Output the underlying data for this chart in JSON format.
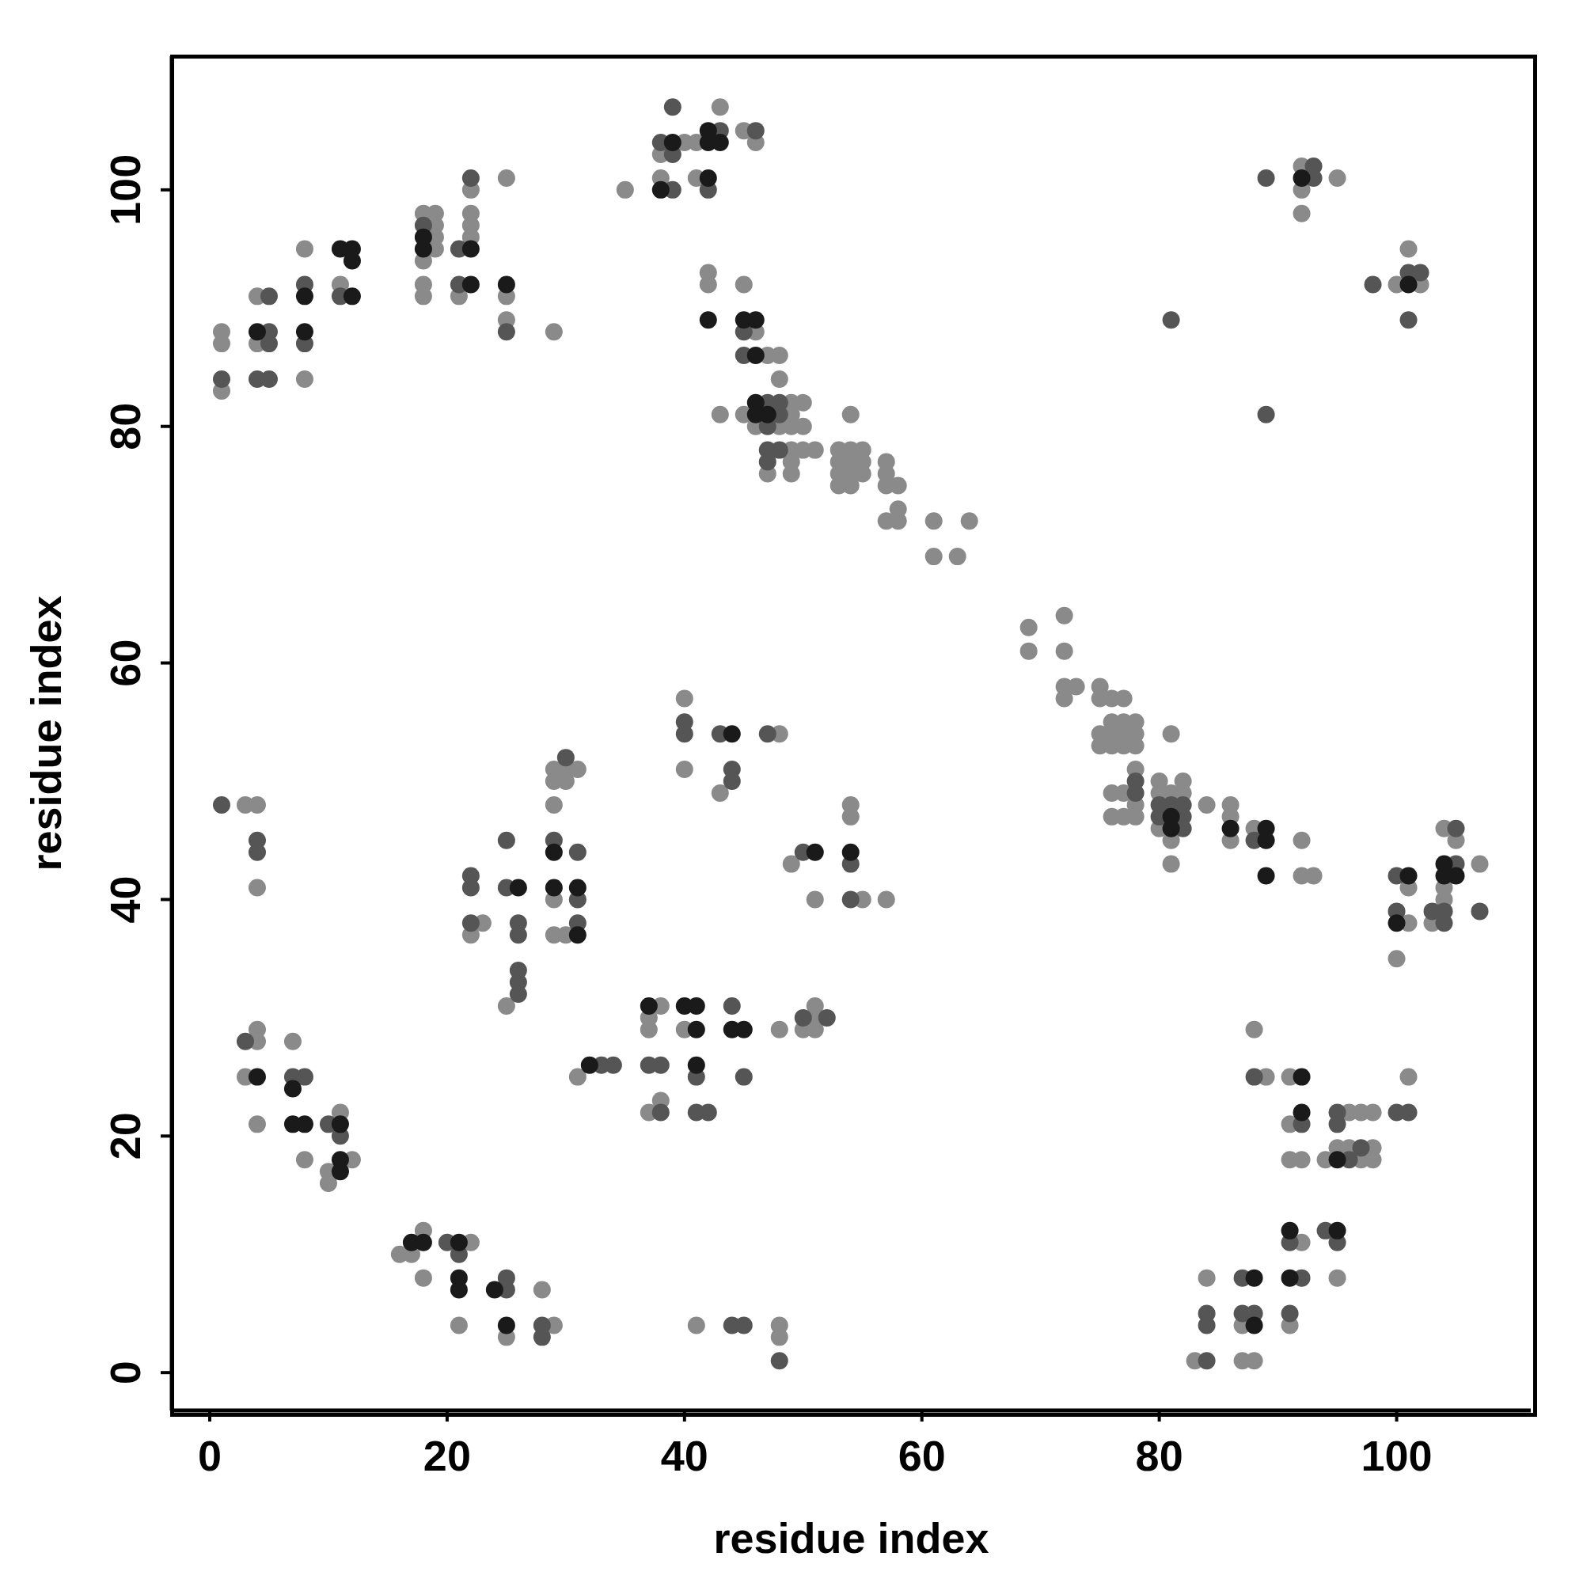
{
  "chart_data": {
    "type": "scatter",
    "xlabel": "residue index",
    "ylabel": "residue index",
    "xlim": [
      -3.2,
      111.3
    ],
    "ylim": [
      -3.2,
      111.3
    ],
    "xticks": [
      0,
      20,
      40,
      60,
      80,
      100
    ],
    "yticks": [
      0,
      20,
      40,
      60,
      80,
      100
    ],
    "marker": "circle",
    "series": [
      {
        "color": "#8a8a8a",
        "x": [
          1,
          1,
          1,
          4,
          4,
          8,
          8,
          11,
          18,
          18,
          18,
          18,
          19,
          19,
          19,
          19,
          21,
          22,
          22,
          22,
          22,
          25,
          25,
          25,
          29,
          35,
          38,
          38,
          40,
          41,
          41,
          43,
          45,
          46,
          42,
          42,
          43,
          45,
          45,
          46,
          46,
          47,
          47,
          48,
          48,
          48,
          49,
          49,
          49,
          49,
          49,
          49,
          50,
          50,
          50,
          51,
          53,
          53,
          53,
          53,
          54,
          54,
          54,
          54,
          54,
          55,
          55,
          55,
          57,
          57,
          57,
          57,
          58,
          58,
          58,
          61,
          61,
          63,
          64,
          69,
          69,
          72,
          72,
          72,
          72,
          73,
          75,
          75,
          75,
          75,
          76,
          76,
          76,
          76,
          76,
          76,
          77,
          77,
          77,
          77,
          77,
          77,
          78,
          78,
          78,
          78,
          78,
          78,
          80,
          80,
          80,
          81,
          81,
          81,
          81,
          82,
          82,
          84,
          86,
          86,
          86,
          88,
          92,
          92,
          93,
          100,
          101,
          101,
          103,
          104,
          104,
          104,
          105,
          107,
          92,
          92,
          92,
          95,
          100,
          101,
          102,
          3,
          4,
          4,
          22,
          23,
          25,
          29,
          29,
          29,
          29,
          29,
          30,
          30,
          30,
          31,
          40,
          40,
          43,
          48,
          49,
          51,
          54,
          54,
          55,
          57,
          3,
          4,
          4,
          4,
          7,
          8,
          10,
          10,
          11,
          12,
          16,
          17,
          18,
          18,
          21,
          22,
          25,
          28,
          29,
          31,
          37,
          37,
          37,
          38,
          38,
          40,
          48,
          50,
          51,
          51,
          51,
          41,
          48,
          48,
          83,
          84,
          87,
          87,
          88,
          88,
          89,
          91,
          91,
          91,
          91,
          92,
          92,
          94,
          95,
          95,
          96,
          96,
          97,
          97,
          98,
          98,
          98,
          101
        ],
        "values": [
          88,
          87,
          83,
          87,
          91,
          95,
          84,
          92,
          98,
          94,
          92,
          91,
          98,
          97,
          96,
          95,
          91,
          100,
          98,
          97,
          96,
          101,
          91,
          89,
          88,
          100,
          103,
          101,
          104,
          104,
          101,
          107,
          105,
          104,
          93,
          92,
          81,
          92,
          81,
          88,
          80,
          86,
          76,
          86,
          84,
          80,
          82,
          81,
          80,
          78,
          77,
          76,
          82,
          80,
          78,
          78,
          78,
          77,
          76,
          75,
          81,
          78,
          77,
          76,
          75,
          78,
          77,
          76,
          77,
          76,
          75,
          72,
          75,
          73,
          72,
          72,
          69,
          69,
          72,
          63,
          61,
          64,
          61,
          58,
          57,
          58,
          58,
          57,
          54,
          53,
          57,
          55,
          54,
          53,
          49,
          47,
          57,
          55,
          54,
          53,
          49,
          47,
          55,
          54,
          53,
          51,
          48,
          47,
          50,
          49,
          46,
          54,
          49,
          45,
          43,
          50,
          49,
          48,
          48,
          47,
          45,
          46,
          45,
          42,
          42,
          35,
          41,
          38,
          38,
          46,
          41,
          40,
          45,
          43,
          102,
          100,
          98,
          101,
          92,
          95,
          92,
          48,
          48,
          41,
          37,
          38,
          31,
          51,
          50,
          48,
          40,
          37,
          51,
          50,
          37,
          51,
          57,
          51,
          49,
          54,
          43,
          40,
          48,
          47,
          40,
          40,
          25,
          29,
          28,
          21,
          28,
          18,
          17,
          16,
          22,
          18,
          10,
          10,
          12,
          8,
          4,
          11,
          3,
          7,
          4,
          25,
          30,
          29,
          22,
          31,
          23,
          29,
          29,
          29,
          31,
          30,
          29,
          4,
          4,
          3,
          1,
          8,
          4,
          1,
          1,
          29,
          25,
          25,
          21,
          18,
          4,
          18,
          11,
          18,
          19,
          8,
          22,
          19,
          22,
          18,
          22,
          19,
          18,
          25
        ]
      },
      {
        "color": "#555555",
        "x": [
          1,
          4,
          5,
          5,
          5,
          5,
          8,
          8,
          11,
          18,
          21,
          21,
          22,
          25,
          38,
          39,
          39,
          39,
          42,
          43,
          46,
          45,
          45,
          47,
          47,
          47,
          47,
          48,
          48,
          48,
          78,
          78,
          80,
          80,
          81,
          82,
          82,
          82,
          88,
          100,
          100,
          103,
          104,
          104,
          105,
          105,
          107,
          89,
          89,
          81,
          93,
          93,
          98,
          101,
          101,
          102,
          1,
          4,
          4,
          22,
          22,
          22,
          25,
          25,
          26,
          26,
          26,
          26,
          26,
          29,
          30,
          31,
          31,
          31,
          40,
          40,
          43,
          44,
          44,
          47,
          50,
          54,
          54,
          3,
          7,
          8,
          10,
          11,
          20,
          21,
          25,
          25,
          28,
          28,
          33,
          34,
          37,
          38,
          38,
          41,
          41,
          42,
          44,
          45,
          50,
          52,
          44,
          45,
          48,
          84,
          84,
          84,
          87,
          87,
          88,
          88,
          91,
          91,
          92,
          92,
          94,
          95,
          95,
          95,
          96,
          97,
          100,
          101
        ],
        "values": [
          84,
          84,
          91,
          88,
          87,
          84,
          92,
          87,
          91,
          97,
          95,
          92,
          101,
          88,
          104,
          107,
          103,
          100,
          100,
          105,
          105,
          88,
          86,
          82,
          80,
          78,
          77,
          82,
          81,
          78,
          50,
          49,
          48,
          47,
          48,
          48,
          47,
          46,
          45,
          42,
          39,
          39,
          39,
          38,
          46,
          43,
          39,
          101,
          81,
          89,
          102,
          101,
          92,
          93,
          89,
          93,
          48,
          45,
          44,
          42,
          41,
          38,
          45,
          41,
          38,
          37,
          34,
          33,
          32,
          45,
          52,
          44,
          40,
          38,
          55,
          54,
          54,
          51,
          50,
          54,
          44,
          43,
          40,
          28,
          25,
          25,
          21,
          20,
          11,
          10,
          8,
          7,
          4,
          3,
          26,
          26,
          26,
          26,
          22,
          25,
          22,
          22,
          31,
          25,
          30,
          30,
          4,
          4,
          1,
          5,
          4,
          1,
          8,
          5,
          5,
          25,
          11,
          5,
          21,
          8,
          12,
          22,
          21,
          11,
          18,
          19,
          22,
          22
        ]
      },
      {
        "color": "#1a1a1a",
        "x": [
          4,
          8,
          8,
          11,
          12,
          12,
          12,
          18,
          18,
          22,
          22,
          25,
          38,
          39,
          42,
          42,
          42,
          43,
          42,
          45,
          46,
          46,
          46,
          46,
          47,
          81,
          81,
          86,
          89,
          89,
          89,
          100,
          101,
          104,
          104,
          105,
          92,
          101,
          26,
          29,
          29,
          31,
          31,
          44,
          51,
          54,
          4,
          7,
          7,
          8,
          11,
          11,
          11,
          17,
          18,
          21,
          21,
          21,
          24,
          25,
          32,
          37,
          40,
          41,
          41,
          41,
          44,
          45,
          88,
          88,
          91,
          91,
          92,
          92,
          95,
          95
        ],
        "values": [
          88,
          91,
          88,
          95,
          95,
          94,
          91,
          96,
          95,
          95,
          92,
          92,
          100,
          104,
          105,
          104,
          101,
          104,
          89,
          89,
          89,
          86,
          82,
          81,
          81,
          47,
          46,
          46,
          46,
          45,
          42,
          38,
          42,
          43,
          42,
          42,
          101,
          92,
          41,
          44,
          41,
          41,
          37,
          54,
          44,
          44,
          25,
          24,
          21,
          21,
          21,
          18,
          17,
          11,
          11,
          11,
          8,
          7,
          7,
          4,
          26,
          31,
          31,
          31,
          29,
          26,
          29,
          29,
          8,
          4,
          12,
          8,
          25,
          22,
          18,
          12
        ]
      }
    ]
  }
}
